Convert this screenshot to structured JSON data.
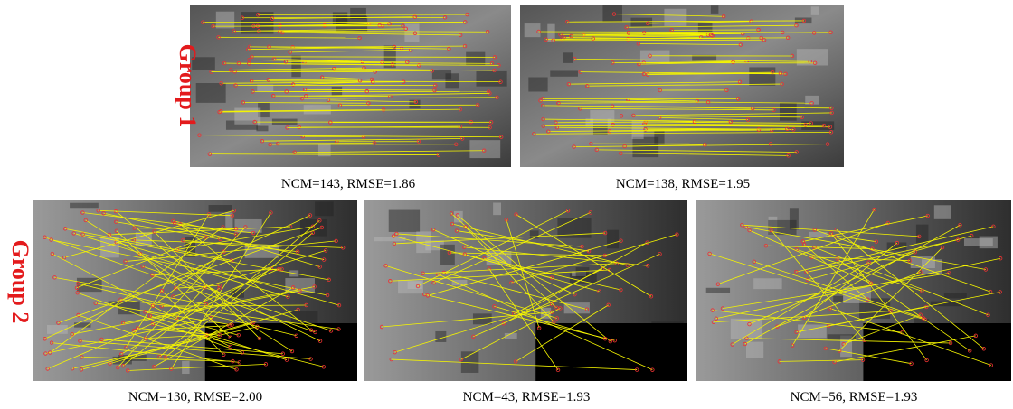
{
  "groups": [
    {
      "label": "Group 1",
      "panels": [
        {
          "caption": "NCM=143, RMSE=1.86"
        },
        {
          "caption": "NCM=138, RMSE=1.95"
        }
      ]
    },
    {
      "label": "Group 2",
      "panels": [
        {
          "caption": "NCM=130, RMSE=2.00"
        },
        {
          "caption": "NCM=43, RMSE=1.93"
        },
        {
          "caption": "NCM=56, RMSE=1.93"
        }
      ]
    }
  ]
}
